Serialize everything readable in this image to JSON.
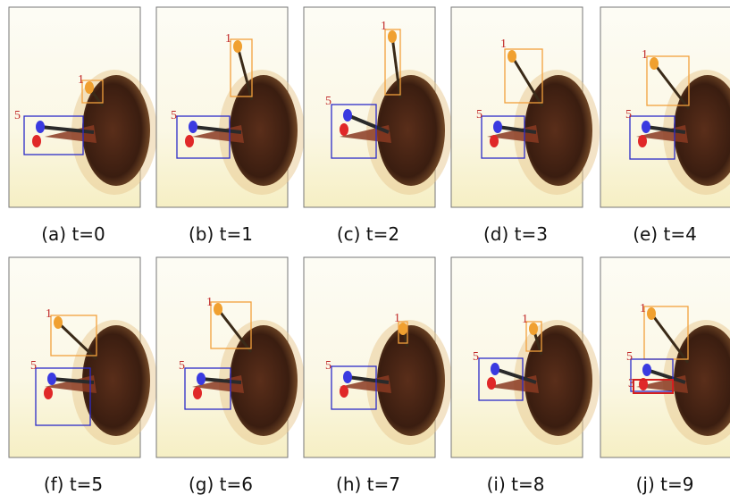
{
  "panels": [
    {
      "caption": "(a) t=0",
      "boxes": [
        {
          "label": "1",
          "color": "#f2a03c"
        },
        {
          "label": "5",
          "color": "#2b2bc8"
        }
      ]
    },
    {
      "caption": "(b) t=1",
      "boxes": [
        {
          "label": "1",
          "color": "#f2a03c"
        },
        {
          "label": "5",
          "color": "#2b2bc8"
        }
      ]
    },
    {
      "caption": "(c) t=2",
      "boxes": [
        {
          "label": "1",
          "color": "#f2a03c"
        },
        {
          "label": "5",
          "color": "#2b2bc8"
        }
      ]
    },
    {
      "caption": "(d) t=3",
      "boxes": [
        {
          "label": "1",
          "color": "#f2a03c"
        },
        {
          "label": "5",
          "color": "#2b2bc8"
        }
      ]
    },
    {
      "caption": "(e) t=4",
      "boxes": [
        {
          "label": "1",
          "color": "#f2a03c"
        },
        {
          "label": "5",
          "color": "#2b2bc8"
        }
      ]
    },
    {
      "caption": "(f) t=5",
      "boxes": [
        {
          "label": "1",
          "color": "#f2a03c"
        },
        {
          "label": "5",
          "color": "#2b2bc8"
        }
      ]
    },
    {
      "caption": "(g) t=6",
      "boxes": [
        {
          "label": "1",
          "color": "#f2a03c"
        },
        {
          "label": "5",
          "color": "#2b2bc8"
        }
      ]
    },
    {
      "caption": "(h) t=7",
      "boxes": [
        {
          "label": "1",
          "color": "#f2a03c"
        },
        {
          "label": "5",
          "color": "#2b2bc8"
        }
      ]
    },
    {
      "caption": "(i) t=8",
      "boxes": [
        {
          "label": "1",
          "color": "#f2a03c"
        },
        {
          "label": "5",
          "color": "#2b2bc8"
        }
      ]
    },
    {
      "caption": "(j) t=9",
      "boxes": [
        {
          "label": "1",
          "color": "#f2a03c"
        },
        {
          "label": "5",
          "color": "#2b2bc8"
        },
        {
          "label": "3",
          "color": "#d42020"
        }
      ]
    }
  ]
}
